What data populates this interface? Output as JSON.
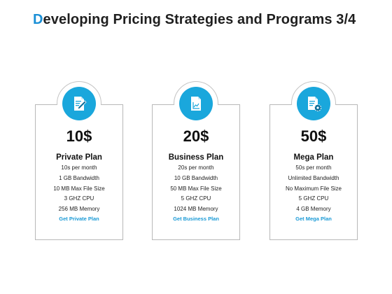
{
  "title": {
    "first_letter": "D",
    "rest": "eveloping Pricing Strategies and Programs 3/4"
  },
  "plans": [
    {
      "icon": "document-pen-icon",
      "price": "10$",
      "name": "Private Plan",
      "features": [
        "10s per month",
        "1 GB Bandwidth",
        "10 MB Max File Size",
        "3 GHZ CPU",
        "256 MB Memory"
      ],
      "cta": "Get Private Plan"
    },
    {
      "icon": "document-chart-icon",
      "price": "20$",
      "name": "Business Plan",
      "features": [
        "20s per month",
        "10 GB Bandwidth",
        "50 MB Max File Size",
        "5 GHZ CPU",
        "1024 MB Memory"
      ],
      "cta": "Get Business Plan"
    },
    {
      "icon": "document-gear-icon",
      "price": "50$",
      "name": "Mega Plan",
      "features": [
        "50s per month",
        "Unlimited Bandwidth",
        "No Maximum File Size",
        "5 GHZ CPU",
        "4 GB Memory"
      ],
      "cta": "Get Mega Plan"
    }
  ],
  "colors": {
    "accent": "#1aa7dc",
    "title_accent": "#1a8fd6",
    "cta": "#1a9ad6"
  }
}
